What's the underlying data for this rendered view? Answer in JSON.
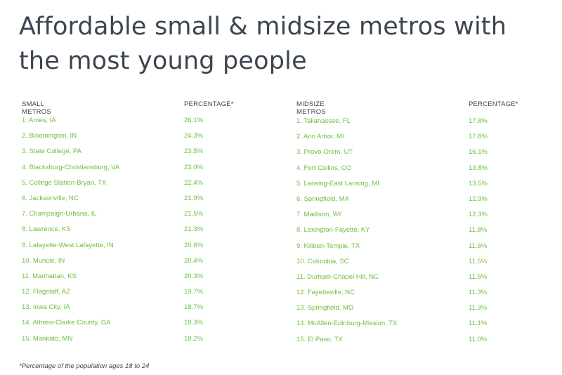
{
  "title": "Affordable small & midsize metros with the most young people",
  "small_metros": {
    "header_name": "SMALL METROS",
    "header_pct": "PERCENTAGE*",
    "rows": [
      {
        "name": "1. Ames, IA",
        "pct": "26.1%"
      },
      {
        "name": "2. Bloomington, IN",
        "pct": "24.3%"
      },
      {
        "name": "3. State College, PA",
        "pct": "23.5%"
      },
      {
        "name": "4. Blacksburg-Christiansburg, VA",
        "pct": "23.0%"
      },
      {
        "name": "5. College Station-Bryan, TX",
        "pct": "22.4%"
      },
      {
        "name": "6. Jacksonville, NC",
        "pct": "21.9%"
      },
      {
        "name": "7. Champaign-Urbana, IL",
        "pct": "21.5%"
      },
      {
        "name": "8. Lawrence, KS",
        "pct": "21.3%"
      },
      {
        "name": "9. Lafayette-West Lafayette, IN",
        "pct": "20.6%"
      },
      {
        "name": "10. Muncie, IN",
        "pct": "20.4%"
      },
      {
        "name": "11. Manhattan, KS",
        "pct": "20.3%"
      },
      {
        "name": "12. Flagstaff, AZ",
        "pct": "19.7%"
      },
      {
        "name": "13. Iowa City, IA",
        "pct": "18.7%"
      },
      {
        "name": "14. Athens-Clarke County, GA",
        "pct": "18.3%"
      },
      {
        "name": "15. Mankato, MN",
        "pct": "18.2%"
      }
    ]
  },
  "midsize_metros": {
    "header_name": "MIDSIZE METROS",
    "header_pct": "PERCENTAGE*",
    "rows": [
      {
        "name": "1. Tallahassee, FL",
        "pct": "17.8%"
      },
      {
        "name": "2. Ann Arbor, MI",
        "pct": "17.8%"
      },
      {
        "name": "3. Provo-Orem, UT",
        "pct": "16.1%"
      },
      {
        "name": "4. Fort Collins, CO",
        "pct": "13.8%"
      },
      {
        "name": "5. Lansing-East Lansing, MI",
        "pct": "13.5%"
      },
      {
        "name": "6. Springfield, MA",
        "pct": "12.9%"
      },
      {
        "name": "7. Madison, WI",
        "pct": "12.3%"
      },
      {
        "name": "8. Lexington-Fayette, KY",
        "pct": "11.8%"
      },
      {
        "name": "9. Killeen-Temple, TX",
        "pct": "11.6%"
      },
      {
        "name": "10. Columbia, SC",
        "pct": "11.5%"
      },
      {
        "name": "11. Durham-Chapel Hill, NC",
        "pct": "11.5%"
      },
      {
        "name": "12. Fayetteville, NC",
        "pct": "11.3%"
      },
      {
        "name": "13. Springfield, MO",
        "pct": "11.3%"
      },
      {
        "name": "14. McAllen-Edinburg-Mission, TX",
        "pct": "11.1%"
      },
      {
        "name": "15. El Paso, TX",
        "pct": "11.0%"
      }
    ]
  },
  "footnote": "*Percentage of the population ages 18 to 24",
  "colors": {
    "title": "#3c4550",
    "row_text": "#6cbf3f"
  }
}
